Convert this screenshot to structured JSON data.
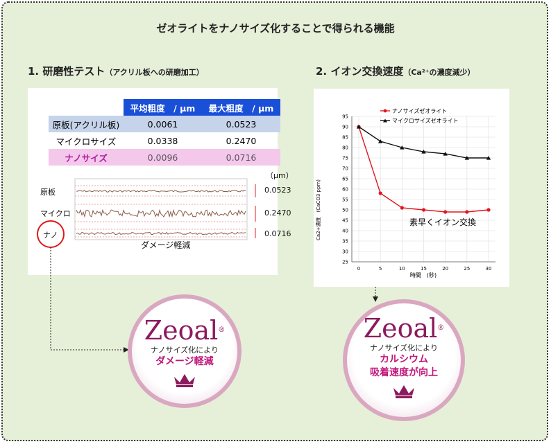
{
  "title": "ゼオライトをナノサイズ化することで得られる機能",
  "section1": {
    "title": "1. 研磨性テスト",
    "sub": "（アクリル板への研磨加工）"
  },
  "section2": {
    "title": "2. イオン交換速度",
    "sub": "（Ca²⁺の濃度減少）"
  },
  "table": {
    "headers": [
      "",
      "平均粗度　/ μm",
      "最大粗度　/ μm"
    ],
    "rows": [
      [
        "原板(アクリル板)",
        "0.0061",
        "0.0523"
      ],
      [
        "マイクロサイズ",
        "0.0338",
        "0.2470"
      ],
      [
        "ナノサイズ",
        "0.0096",
        "0.0716"
      ]
    ]
  },
  "profile": {
    "unit": "（μm）",
    "rows": [
      {
        "label": "原板",
        "value": "0.0523"
      },
      {
        "label": "マイクロ",
        "value": "0.2470"
      },
      {
        "label": "ナノ",
        "value": "0.0716"
      }
    ],
    "note": "ダメージ軽減"
  },
  "chart_data": {
    "type": "line",
    "x": [
      0,
      5,
      10,
      15,
      20,
      25,
      30
    ],
    "series": [
      {
        "name": "ナノサイズゼオライト",
        "color": "#e0161e",
        "marker": "circle",
        "values": [
          90,
          58,
          51,
          50,
          49,
          49,
          50
        ]
      },
      {
        "name": "マイクロサイズゼオライト",
        "color": "#111111",
        "marker": "triangle",
        "values": [
          90,
          83,
          80,
          78,
          77,
          75,
          75
        ]
      }
    ],
    "xlabel": "時間　(秒)",
    "ylabel": "Ca2+濃度　(CaCO3 ppm)",
    "ylim": [
      25,
      95
    ],
    "yticks": [
      25,
      30,
      35,
      40,
      45,
      50,
      55,
      60,
      65,
      70,
      75,
      80,
      85,
      90,
      95
    ],
    "xticks": [
      0,
      5,
      10,
      15,
      20,
      25,
      30
    ],
    "annotation": "素早くイオン交換",
    "legend": "top-right"
  },
  "badge1": {
    "brand": "Zeoal",
    "mark": "®",
    "line1": "ナノサイズ化により",
    "line2": "ダメージ軽減",
    "line3": ""
  },
  "badge2": {
    "brand": "Zeoal",
    "mark": "®",
    "line1": "ナノサイズ化により",
    "line2": "カルシウム",
    "line3": "吸着速度が向上"
  },
  "colors": {
    "accent": "#8c1a5e",
    "highlight": "#c0177a",
    "background": "#e6f0d9"
  }
}
